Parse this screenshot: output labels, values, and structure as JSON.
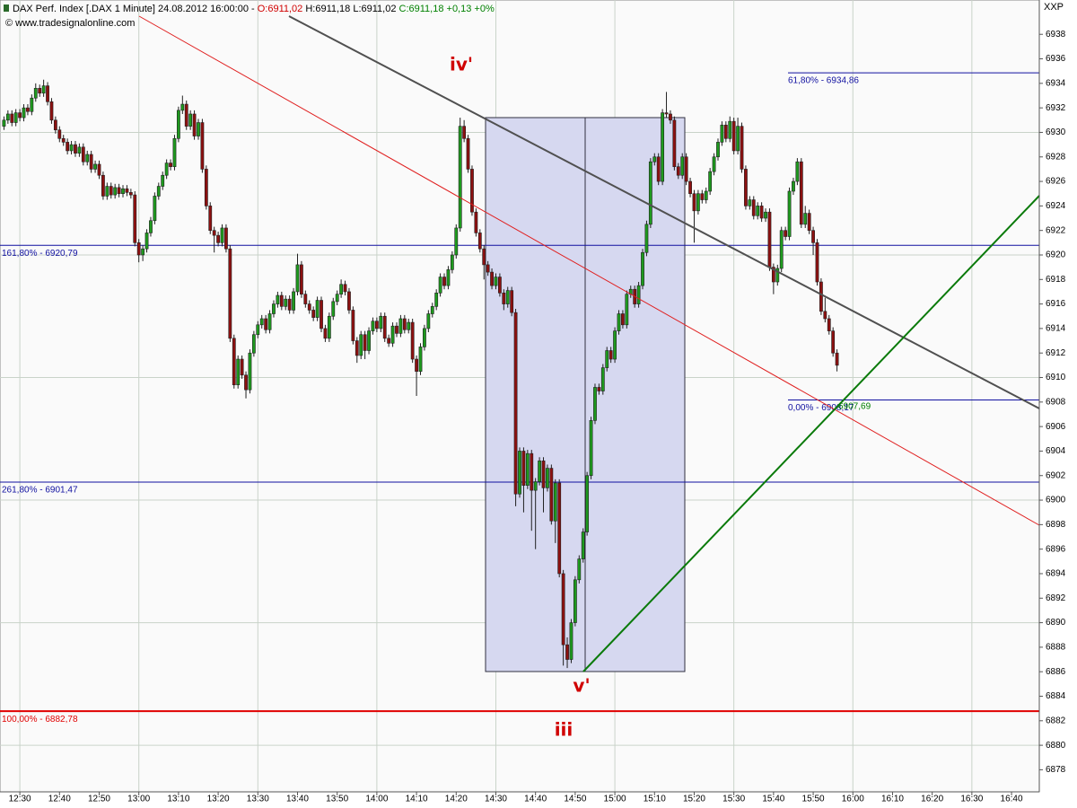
{
  "chart_data": {
    "type": "candlestick",
    "header": [
      {
        "text": "DAX Perf. Index [.DAX  1 Minute] 24.08.2012 16:00:00 - ",
        "color": "#000000"
      },
      {
        "text": "O:6911,02",
        "color": "#d00000"
      },
      {
        "text": " H:6911,18 L:6911,02 ",
        "color": "#000000"
      },
      {
        "text": "C:6911,18 +0,13 +0%",
        "color": "#008000"
      }
    ],
    "copyright": "© www.tradesignalonline.com",
    "corner_label": "XXP",
    "annotations": [
      "iv'",
      "v'",
      "iii"
    ],
    "up_color": "#1e9a1e",
    "down_color": "#8c1010",
    "xlim": [
      "12:25",
      "16:47"
    ],
    "ylim": [
      6876.2,
      6940.8
    ],
    "xticks": [
      "12:30",
      "12:40",
      "12:50",
      "13:00",
      "13:10",
      "13:20",
      "13:30",
      "13:40",
      "13:50",
      "14:00",
      "14:10",
      "14:20",
      "14:30",
      "14:40",
      "14:50",
      "15:00",
      "15:10",
      "15:20",
      "15:30",
      "15:40",
      "15:50",
      "16:00",
      "16:10",
      "16:20",
      "16:30",
      "16:40"
    ],
    "yticks": [
      6878,
      6880,
      6882,
      6884,
      6886,
      6888,
      6890,
      6892,
      6894,
      6896,
      6898,
      6900,
      6902,
      6904,
      6906,
      6908,
      6910,
      6912,
      6914,
      6916,
      6918,
      6920,
      6922,
      6924,
      6926,
      6928,
      6930,
      6932,
      6934,
      6936,
      6938
    ],
    "grid": true,
    "levels": [
      {
        "value": 6920.79,
        "label": "161,80% - 6920,79",
        "color": "#1010a0"
      },
      {
        "value": 6901.47,
        "label": "261,80% - 6901,47",
        "color": "#1010a0"
      },
      {
        "value": 6882.78,
        "label": "100,00% - 6882,78",
        "color": "#e00000"
      }
    ],
    "projection_levels": [
      {
        "value": 6934.86,
        "label": "61,80% - 6934,86",
        "color": "#1010a0"
      },
      {
        "value": 6908.17,
        "label": "0,00% - 6908,17",
        "color": "#1010a0"
      }
    ],
    "line_value": {
      "value": 6907.69,
      "label": "6907,69",
      "color": "#008000"
    },
    "x": [
      "12:26",
      "12:27",
      "12:28",
      "12:29",
      "12:30",
      "12:31",
      "12:32",
      "12:33",
      "12:34",
      "12:35",
      "12:36",
      "12:37",
      "12:38",
      "12:39",
      "12:40",
      "12:41",
      "12:42",
      "12:43",
      "12:44",
      "12:45",
      "12:46",
      "12:47",
      "12:48",
      "12:49",
      "12:50",
      "12:51",
      "12:52",
      "12:53",
      "12:54",
      "12:55",
      "12:56",
      "12:57",
      "12:58",
      "12:59",
      "13:00",
      "13:01",
      "13:02",
      "13:03",
      "13:04",
      "13:05",
      "13:06",
      "13:07",
      "13:08",
      "13:09",
      "13:10",
      "13:11",
      "13:12",
      "13:13",
      "13:14",
      "13:15",
      "13:16",
      "13:17",
      "13:18",
      "13:19",
      "13:20",
      "13:21",
      "13:22",
      "13:23",
      "13:24",
      "13:25",
      "13:26",
      "13:27",
      "13:28",
      "13:29",
      "13:30",
      "13:31",
      "13:32",
      "13:33",
      "13:34",
      "13:35",
      "13:36",
      "13:37",
      "13:38",
      "13:39",
      "13:40",
      "13:41",
      "13:42",
      "13:43",
      "13:44",
      "13:45",
      "13:46",
      "13:47",
      "13:48",
      "13:49",
      "13:50",
      "13:51",
      "13:52",
      "13:53",
      "13:54",
      "13:55",
      "13:56",
      "13:57",
      "13:58",
      "13:59",
      "14:00",
      "14:01",
      "14:02",
      "14:03",
      "14:04",
      "14:05",
      "14:06",
      "14:07",
      "14:08",
      "14:09",
      "14:10",
      "14:11",
      "14:12",
      "14:13",
      "14:14",
      "14:15",
      "14:16",
      "14:17",
      "14:18",
      "14:19",
      "14:20",
      "14:21",
      "14:22",
      "14:23",
      "14:24",
      "14:25",
      "14:26",
      "14:27",
      "14:28",
      "14:29",
      "14:30",
      "14:31",
      "14:32",
      "14:33",
      "14:34",
      "14:35",
      "14:36",
      "14:37",
      "14:38",
      "14:39",
      "14:40",
      "14:41",
      "14:42",
      "14:43",
      "14:44",
      "14:45",
      "14:46",
      "14:47",
      "14:48",
      "14:49",
      "14:50",
      "14:51",
      "14:52",
      "14:53",
      "14:54",
      "14:55",
      "14:56",
      "14:57",
      "14:58",
      "14:59",
      "15:00",
      "15:01",
      "15:02",
      "15:03",
      "15:04",
      "15:05",
      "15:06",
      "15:07",
      "15:08",
      "15:09",
      "15:10",
      "15:11",
      "15:12",
      "15:13",
      "15:14",
      "15:15",
      "15:16",
      "15:17",
      "15:18",
      "15:19",
      "15:20",
      "15:21",
      "15:22",
      "15:23",
      "15:24",
      "15:25",
      "15:26",
      "15:27",
      "15:28",
      "15:29",
      "15:30",
      "15:31",
      "15:32",
      "15:33",
      "15:34",
      "15:35",
      "15:36",
      "15:37",
      "15:38",
      "15:39",
      "15:40",
      "15:41",
      "15:42",
      "15:43",
      "15:44",
      "15:45",
      "15:46",
      "15:47",
      "15:48",
      "15:49",
      "15:50",
      "15:51",
      "15:52",
      "15:53",
      "15:54",
      "15:55",
      "15:56"
    ],
    "open": [
      6930.5,
      6931.0,
      6931.5,
      6930.8,
      6931.6,
      6931.2,
      6932.0,
      6931.7,
      6932.8,
      6933.6,
      6933.2,
      6933.8,
      6932.5,
      6931.0,
      6930.2,
      6929.5,
      6929.2,
      6928.5,
      6929.0,
      6928.3,
      6928.8,
      6927.6,
      6928.2,
      6927.0,
      6927.4,
      6926.5,
      6924.8,
      6925.6,
      6924.9,
      6925.5,
      6925.0,
      6925.4,
      6925.1,
      6924.9,
      6921.0,
      6920.0,
      6920.5,
      6921.8,
      6922.8,
      6924.8,
      6925.6,
      6926.5,
      6927.5,
      6927.2,
      6929.5,
      6931.8,
      6932.3,
      6930.5,
      6931.5,
      6929.7,
      6930.8,
      6927.0,
      6924.0,
      6922.0,
      6921.6,
      6921.0,
      6922.2,
      6920.5,
      6913.2,
      6909.4,
      6911.5,
      6910.2,
      6909.0,
      6912.0,
      6913.5,
      6914.3,
      6914.8,
      6913.9,
      6915.2,
      6916.0,
      6916.7,
      6915.8,
      6916.4,
      6915.5,
      6917.0,
      6919.2,
      6916.8,
      6916.0,
      6915.5,
      6914.9,
      6916.3,
      6914.0,
      6913.2,
      6915.0,
      6916.2,
      6916.8,
      6917.6,
      6917.0,
      6915.5,
      6913.0,
      6911.8,
      6913.5,
      6912.2,
      6913.8,
      6914.6,
      6914.0,
      6915.0,
      6913.2,
      6912.8,
      6914.2,
      6913.6,
      6914.8,
      6913.9,
      6914.5,
      6911.5,
      6910.5,
      6912.5,
      6914.0,
      6915.2,
      6915.8,
      6916.9,
      6918.2,
      6917.5,
      6918.8,
      6920.0,
      6922.2,
      6930.5,
      6929.5,
      6927.0,
      6923.5,
      6921.8,
      6920.5,
      6919.2,
      6918.6,
      6917.5,
      6918.2,
      6916.9,
      6916.0,
      6917.1,
      6915.3,
      6900.5,
      6904.0,
      6901.2,
      6903.8,
      6900.8,
      6901.5,
      6903.2,
      6901.0,
      6902.6,
      6898.3,
      6901.4,
      6894.0,
      6888.2,
      6887.0,
      6890.0,
      6893.5,
      6895.2,
      6897.4,
      6902.0,
      6906.5,
      6909.2,
      6908.9,
      6910.8,
      6912.2,
      6911.5,
      6913.8,
      6915.2,
      6914.3,
      6916.8,
      6917.2,
      6916.0,
      6917.5,
      6920.2,
      6922.5,
      6927.6,
      6928.0,
      6926.0,
      6931.6,
      6931.5,
      6931.0,
      6927.2,
      6926.5,
      6928.0,
      6926.0,
      6925.0,
      6923.6,
      6925.0,
      6924.5,
      6925.2,
      6926.8,
      6928.0,
      6929.2,
      6930.6,
      6929.5,
      6930.9,
      6928.5,
      6930.5,
      6927.0,
      6924.0,
      6924.5,
      6923.2,
      6924.0,
      6923.0,
      6923.5,
      6919.0,
      6917.8,
      6918.9,
      6922.0,
      6921.5,
      6925.2,
      6926.0,
      6927.6,
      6922.5,
      6923.4,
      6922.0,
      6921.0,
      6917.8,
      6915.4,
      6914.8,
      6913.8,
      6912.0
    ],
    "high": [
      6931.3,
      6931.8,
      6931.8,
      6931.9,
      6931.9,
      6932.3,
      6932.3,
      6933.1,
      6934.0,
      6933.9,
      6934.3,
      6934.1,
      6932.8,
      6931.3,
      6930.5,
      6929.8,
      6929.5,
      6929.3,
      6929.3,
      6929.1,
      6929.1,
      6928.5,
      6928.5,
      6927.7,
      6927.7,
      6926.8,
      6925.9,
      6925.9,
      6925.8,
      6925.8,
      6925.7,
      6925.7,
      6925.4,
      6925.2,
      6921.3,
      6920.8,
      6922.1,
      6923.1,
      6925.1,
      6925.9,
      6926.8,
      6927.8,
      6927.8,
      6929.8,
      6932.1,
      6933.0,
      6932.6,
      6931.8,
      6931.8,
      6931.1,
      6931.1,
      6927.3,
      6924.3,
      6922.3,
      6921.9,
      6922.5,
      6922.5,
      6920.8,
      6913.5,
      6911.8,
      6911.8,
      6910.5,
      6912.3,
      6913.8,
      6914.6,
      6915.1,
      6915.1,
      6915.5,
      6916.3,
      6917.0,
      6917.0,
      6916.7,
      6916.7,
      6917.3,
      6920.1,
      6919.5,
      6917.1,
      6916.3,
      6915.8,
      6916.6,
      6916.6,
      6914.3,
      6915.3,
      6916.5,
      6917.1,
      6918.0,
      6917.9,
      6917.3,
      6915.8,
      6913.3,
      6913.8,
      6913.8,
      6914.1,
      6914.9,
      6914.9,
      6915.3,
      6915.3,
      6913.5,
      6914.5,
      6914.5,
      6915.1,
      6915.1,
      6914.8,
      6914.8,
      6911.8,
      6912.8,
      6914.3,
      6915.5,
      6916.1,
      6917.2,
      6918.5,
      6918.5,
      6919.1,
      6920.3,
      6922.5,
      6931.2,
      6931.0,
      6929.8,
      6927.3,
      6923.8,
      6922.1,
      6920.8,
      6919.5,
      6918.9,
      6918.5,
      6918.5,
      6917.2,
      6917.4,
      6917.4,
      6915.6,
      6904.3,
      6904.3,
      6904.1,
      6904.1,
      6901.8,
      6903.5,
      6903.5,
      6902.9,
      6902.9,
      6901.7,
      6901.7,
      6894.3,
      6888.8,
      6890.3,
      6893.8,
      6895.5,
      6897.7,
      6902.3,
      6906.8,
      6909.5,
      6909.5,
      6911.1,
      6912.5,
      6912.5,
      6914.1,
      6915.5,
      6915.5,
      6917.1,
      6917.5,
      6917.5,
      6917.8,
      6920.5,
      6922.8,
      6927.9,
      6928.3,
      6928.3,
      6931.9,
      6933.3,
      6931.8,
      6931.3,
      6927.5,
      6928.3,
      6928.3,
      6926.3,
      6925.3,
      6925.3,
      6925.3,
      6925.5,
      6927.1,
      6928.3,
      6929.5,
      6930.9,
      6930.9,
      6931.3,
      6931.2,
      6931.2,
      6930.8,
      6927.3,
      6924.8,
      6924.8,
      6924.3,
      6924.3,
      6923.8,
      6923.8,
      6919.3,
      6919.2,
      6922.3,
      6922.3,
      6925.5,
      6926.3,
      6927.9,
      6927.9,
      6924.0,
      6923.7,
      6922.3,
      6921.3,
      6918.1,
      6916.5,
      6915.1,
      6914.1,
      6912.3
    ],
    "low": [
      6930.2,
      6930.7,
      6930.5,
      6930.5,
      6930.9,
      6930.9,
      6931.4,
      6931.4,
      6932.5,
      6932.9,
      6932.9,
      6932.2,
      6930.7,
      6929.9,
      6929.2,
      6928.9,
      6928.2,
      6928.2,
      6928.0,
      6928.0,
      6927.3,
      6927.3,
      6926.7,
      6926.7,
      6926.2,
      6924.5,
      6924.5,
      6924.6,
      6924.6,
      6924.7,
      6924.7,
      6924.8,
      6924.6,
      6920.7,
      6919.4,
      6919.5,
      6920.2,
      6921.5,
      6922.5,
      6924.5,
      6925.3,
      6926.2,
      6926.9,
      6926.9,
      6929.2,
      6931.5,
      6930.2,
      6930.2,
      6929.4,
      6929.4,
      6926.7,
      6923.7,
      6921.7,
      6920.2,
      6920.7,
      6920.7,
      6920.2,
      6912.9,
      6909.1,
      6909.1,
      6909.9,
      6908.3,
      6908.7,
      6911.7,
      6913.2,
      6914.0,
      6913.6,
      6913.6,
      6914.9,
      6915.7,
      6915.5,
      6915.5,
      6915.2,
      6915.2,
      6916.7,
      6916.5,
      6915.7,
      6915.2,
      6914.6,
      6914.6,
      6913.7,
      6912.9,
      6912.9,
      6914.7,
      6915.9,
      6916.5,
      6916.7,
      6915.2,
      6912.7,
      6911.2,
      6911.5,
      6911.5,
      6911.9,
      6913.5,
      6913.7,
      6913.7,
      6912.9,
      6912.5,
      6912.5,
      6913.3,
      6913.3,
      6913.6,
      6913.6,
      6911.2,
      6908.5,
      6910.2,
      6912.2,
      6913.7,
      6914.9,
      6915.5,
      6916.6,
      6917.2,
      6917.2,
      6918.5,
      6919.7,
      6921.9,
      6929.2,
      6926.7,
      6923.2,
      6921.5,
      6920.2,
      6918.0,
      6918.3,
      6917.2,
      6917.2,
      6916.6,
      6915.5,
      6915.7,
      6915.0,
      6899.5,
      6900.2,
      6899.0,
      6900.9,
      6897.5,
      6896.0,
      6901.2,
      6899.0,
      6900.7,
      6898.0,
      6896.5,
      6893.7,
      6886.5,
      6886.3,
      6886.7,
      6889.7,
      6893.2,
      6894.9,
      6897.1,
      6901.7,
      6906.2,
      6908.6,
      6908.6,
      6910.5,
      6911.2,
      6911.2,
      6913.5,
      6914.0,
      6914.0,
      6916.5,
      6915.7,
      6915.7,
      6917.2,
      6919.9,
      6922.2,
      6927.3,
      6925.7,
      6925.7,
      6931.2,
      6930.7,
      6926.9,
      6926.2,
      6926.2,
      6925.7,
      6924.7,
      6921.0,
      6923.3,
      6924.2,
      6924.2,
      6924.9,
      6926.5,
      6927.7,
      6928.9,
      6929.2,
      6929.2,
      6928.2,
      6928.2,
      6926.7,
      6923.7,
      6923.7,
      6922.9,
      6922.9,
      6922.7,
      6922.7,
      6918.7,
      6916.8,
      6917.5,
      6918.6,
      6921.2,
      6921.2,
      6924.9,
      6925.7,
      6922.2,
      6922.2,
      6921.7,
      6920.0,
      6917.5,
      6915.1,
      6914.5,
      6913.5,
      6911.7,
      6910.5
    ],
    "close": [
      6931.0,
      6931.5,
      6930.8,
      6931.6,
      6931.2,
      6932.0,
      6931.7,
      6932.8,
      6933.6,
      6933.2,
      6933.8,
      6932.5,
      6931.0,
      6930.2,
      6929.5,
      6929.2,
      6928.5,
      6929.0,
      6928.3,
      6928.8,
      6927.6,
      6928.2,
      6927.0,
      6927.4,
      6926.5,
      6924.8,
      6925.6,
      6924.9,
      6925.5,
      6925.0,
      6925.4,
      6925.1,
      6924.9,
      6921.0,
      6920.0,
      6920.5,
      6921.8,
      6922.8,
      6924.8,
      6925.6,
      6926.5,
      6927.5,
      6927.2,
      6929.5,
      6931.8,
      6932.3,
      6930.5,
      6931.5,
      6929.7,
      6930.8,
      6927.0,
      6924.0,
      6922.0,
      6921.6,
      6921.0,
      6922.2,
      6920.5,
      6913.2,
      6909.4,
      6911.5,
      6910.2,
      6909.0,
      6912.0,
      6913.5,
      6914.3,
      6914.8,
      6913.9,
      6915.2,
      6916.0,
      6916.7,
      6915.8,
      6916.4,
      6915.5,
      6917.0,
      6919.2,
      6916.8,
      6916.0,
      6915.5,
      6914.9,
      6916.3,
      6914.0,
      6913.2,
      6915.0,
      6916.2,
      6916.8,
      6917.6,
      6917.0,
      6915.5,
      6913.0,
      6911.8,
      6913.5,
      6912.2,
      6913.8,
      6914.6,
      6914.0,
      6915.0,
      6913.2,
      6912.8,
      6914.2,
      6913.6,
      6914.8,
      6913.9,
      6914.5,
      6911.5,
      6910.5,
      6912.5,
      6914.0,
      6915.2,
      6915.8,
      6916.9,
      6918.2,
      6917.5,
      6918.8,
      6920.0,
      6922.2,
      6930.5,
      6929.5,
      6927.0,
      6923.5,
      6921.8,
      6920.5,
      6919.2,
      6918.6,
      6917.5,
      6918.2,
      6916.9,
      6916.0,
      6917.1,
      6915.3,
      6900.5,
      6904.0,
      6901.2,
      6903.8,
      6900.8,
      6901.5,
      6903.2,
      6901.0,
      6902.6,
      6898.3,
      6901.4,
      6894.0,
      6888.2,
      6887.0,
      6890.0,
      6893.5,
      6895.2,
      6897.4,
      6902.0,
      6906.5,
      6909.2,
      6908.9,
      6910.8,
      6912.2,
      6911.5,
      6913.8,
      6915.2,
      6914.3,
      6916.8,
      6917.2,
      6916.0,
      6917.5,
      6920.2,
      6922.5,
      6927.6,
      6928.0,
      6926.0,
      6931.6,
      6931.5,
      6931.0,
      6927.2,
      6926.5,
      6928.0,
      6926.0,
      6925.0,
      6923.6,
      6925.0,
      6924.5,
      6925.2,
      6926.8,
      6928.0,
      6929.2,
      6930.6,
      6929.5,
      6930.9,
      6928.5,
      6930.5,
      6927.0,
      6924.0,
      6924.5,
      6923.2,
      6924.0,
      6923.0,
      6923.5,
      6919.0,
      6917.8,
      6918.9,
      6922.0,
      6921.5,
      6925.2,
      6926.0,
      6927.6,
      6922.5,
      6923.4,
      6922.0,
      6921.0,
      6917.8,
      6915.4,
      6914.8,
      6913.8,
      6912.0,
      6911.0
    ]
  }
}
